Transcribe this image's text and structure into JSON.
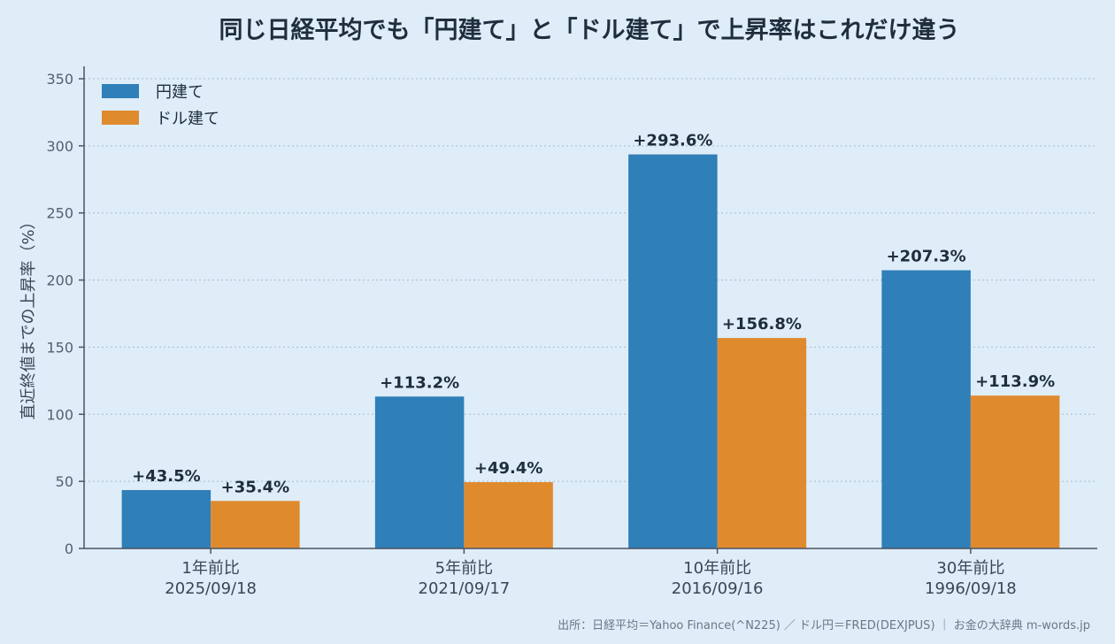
{
  "chart_data": {
    "type": "bar",
    "title": "同じ日経平均でも「円建て」と「ドル建て」で上昇率はこれだけ違う",
    "ylabel": "直近終値までの上昇率（%）",
    "xlabel": "",
    "ylim": [
      0,
      350
    ],
    "yticks": [
      0,
      50,
      100,
      150,
      200,
      250,
      300,
      350
    ],
    "grid": true,
    "legend_position": "top-left",
    "categories": [
      {
        "line1": "1年前比",
        "line2": "2025/09/18"
      },
      {
        "line1": "5年前比",
        "line2": "2021/09/17"
      },
      {
        "line1": "10年前比",
        "line2": "2016/09/16"
      },
      {
        "line1": "30年前比",
        "line2": "1996/09/18"
      }
    ],
    "series": [
      {
        "name": "円建て",
        "color": "#2f7fb8",
        "values": [
          43.5,
          113.2,
          293.6,
          207.3
        ],
        "labels": [
          "+43.5%",
          "+113.2%",
          "+293.6%",
          "+207.3%"
        ]
      },
      {
        "name": "ドル建て",
        "color": "#e08a2e",
        "values": [
          35.4,
          49.4,
          156.8,
          113.9
        ],
        "labels": [
          "+35.4%",
          "+49.4%",
          "+156.8%",
          "+113.9%"
        ]
      }
    ],
    "source": "出所：日経平均＝Yahoo Finance(^N225) ／ ドル円＝FRED(DEXJPUS) ｜ お金の大辞典 m-words.jp"
  }
}
